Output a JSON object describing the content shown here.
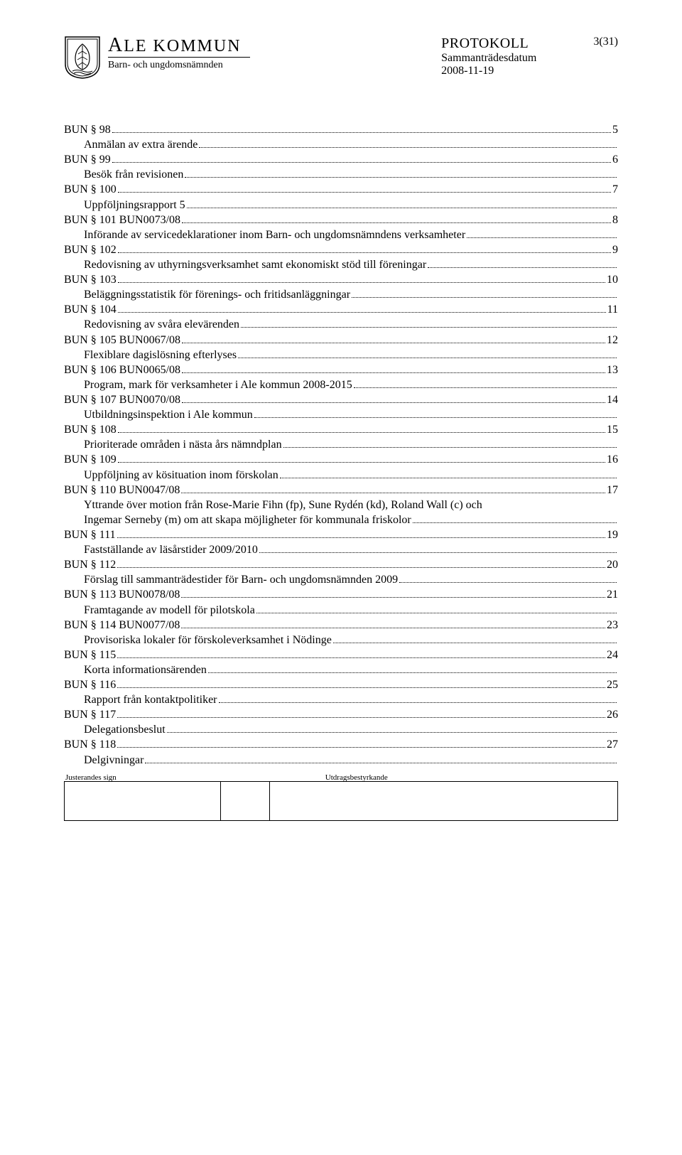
{
  "header": {
    "org_name_html": "ALE KOMMUN",
    "committee": "Barn- och ungdomsnämnden",
    "protokoll": "PROTOKOLL",
    "subtitle": "Sammanträdesdatum",
    "date": "2008-11-19",
    "page_num": "3(31)"
  },
  "footer": {
    "left_label": "Justerandes sign",
    "right_label": "Utdragsbestyrkande"
  },
  "toc": [
    {
      "label": "BUN § 98",
      "page": "5",
      "indent": false
    },
    {
      "label": "Anmälan av extra ärende",
      "page": "",
      "indent": true
    },
    {
      "label": "BUN § 99",
      "page": "6",
      "indent": false
    },
    {
      "label": "Besök från revisionen",
      "page": "",
      "indent": true
    },
    {
      "label": "BUN § 100",
      "page": "7",
      "indent": false
    },
    {
      "label": "Uppföljningsrapport 5",
      "page": "",
      "indent": true
    },
    {
      "label": "BUN § 101      BUN0073/08",
      "page": "8",
      "indent": false
    },
    {
      "label": "Införande av servicedeklarationer inom Barn- och ungdomsnämndens verksamheter",
      "page": "",
      "indent": true
    },
    {
      "label": "BUN § 102",
      "page": "9",
      "indent": false
    },
    {
      "label": "Redovisning av uthyrningsverksamhet samt ekonomiskt stöd till föreningar",
      "page": "",
      "indent": true
    },
    {
      "label": "BUN § 103",
      "page": "10",
      "indent": false
    },
    {
      "label": "Beläggningsstatistik för förenings- och fritidsanläggningar",
      "page": "",
      "indent": true
    },
    {
      "label": "BUN § 104",
      "page": "11",
      "indent": false
    },
    {
      "label": "Redovisning av svåra elevärenden",
      "page": "",
      "indent": true
    },
    {
      "label": "BUN § 105      BUN0067/08",
      "page": "12",
      "indent": false
    },
    {
      "label": "Flexiblare dagislösning efterlyses",
      "page": "",
      "indent": true
    },
    {
      "label": "BUN § 106      BUN0065/08",
      "page": "13",
      "indent": false
    },
    {
      "label": "Program, mark för verksamheter i Ale kommun 2008-2015",
      "page": "",
      "indent": true
    },
    {
      "label": "BUN § 107      BUN0070/08",
      "page": "14",
      "indent": false
    },
    {
      "label": "Utbildningsinspektion i Ale kommun",
      "page": "",
      "indent": true
    },
    {
      "label": "BUN § 108",
      "page": "15",
      "indent": false
    },
    {
      "label": "Prioriterade områden i nästa års nämndplan",
      "page": "",
      "indent": true
    },
    {
      "label": "BUN § 109",
      "page": "16",
      "indent": false
    },
    {
      "label": "Uppföljning av kösituation inom förskolan",
      "page": "",
      "indent": true
    },
    {
      "label": "BUN § 110      BUN0047/08",
      "page": "17",
      "indent": false
    },
    {
      "label": "Yttrande över motion från Rose-Marie Fihn (fp), Sune Rydén (kd), Roland Wall (c) och Ingemar Serneby (m) om att skapa möjligheter för kommunala friskolor",
      "page": "",
      "indent": true,
      "multiline": true
    },
    {
      "label": "BUN § 111",
      "page": "19",
      "indent": false
    },
    {
      "label": "Fastställande av läsårstider 2009/2010",
      "page": "",
      "indent": true
    },
    {
      "label": "BUN § 112",
      "page": "20",
      "indent": false
    },
    {
      "label": "Förslag till sammanträdestider för Barn- och ungdomsnämnden 2009",
      "page": "",
      "indent": true
    },
    {
      "label": "BUN § 113      BUN0078/08",
      "page": "21",
      "indent": false
    },
    {
      "label": "Framtagande av modell för pilotskola",
      "page": "",
      "indent": true
    },
    {
      "label": "BUN § 114      BUN0077/08",
      "page": "23",
      "indent": false
    },
    {
      "label": "Provisoriska lokaler för förskoleverksamhet i Nödinge",
      "page": "",
      "indent": true
    },
    {
      "label": "BUN § 115",
      "page": "24",
      "indent": false
    },
    {
      "label": "Korta informationsärenden",
      "page": "",
      "indent": true
    },
    {
      "label": "BUN § 116",
      "page": "25",
      "indent": false
    },
    {
      "label": "Rapport från kontaktpolitiker",
      "page": "",
      "indent": true
    },
    {
      "label": "BUN § 117",
      "page": "26",
      "indent": false
    },
    {
      "label": "Delegationsbeslut",
      "page": "",
      "indent": true
    },
    {
      "label": "BUN § 118",
      "page": "27",
      "indent": false
    },
    {
      "label": "Delgivningar",
      "page": "",
      "indent": true
    }
  ]
}
